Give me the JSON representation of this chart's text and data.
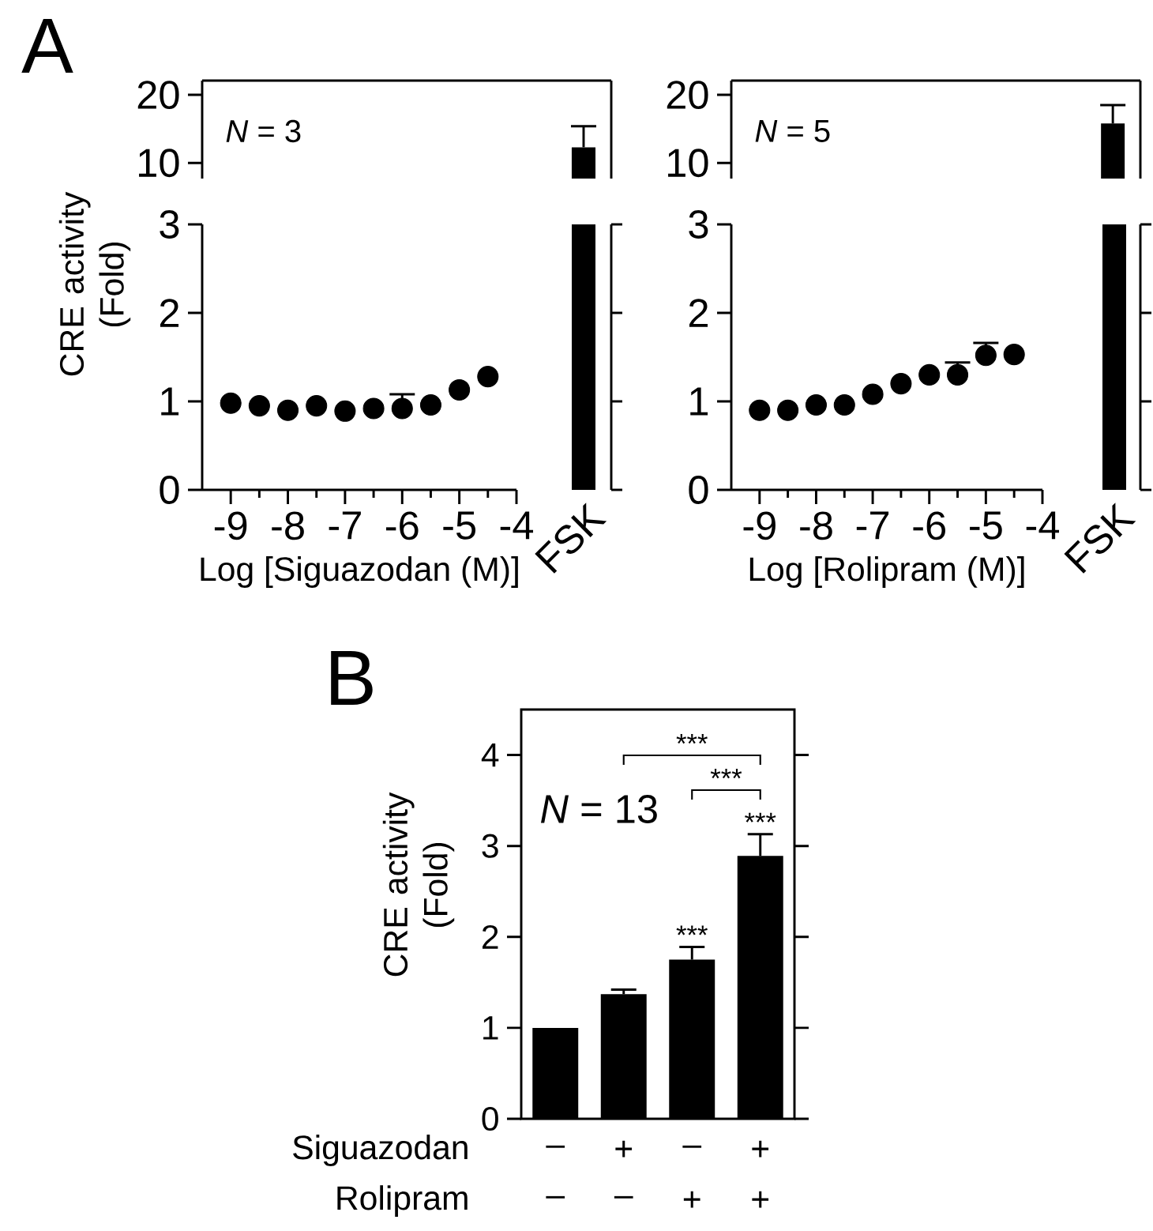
{
  "chart_data": [
    {
      "type": "bar",
      "title": "A",
      "categories": [
        null
      ],
      "values": [
        12.3
      ],
      "errors": [
        [
          12.3,
          15.4
        ]
      ],
      "color": "#000000",
      "ylim": [
        7.7,
        22.1
      ],
      "yticks": [
        10,
        20
      ],
      "annotations": [
        "*N* = 3",
        "FSK"
      ]
    },
    {
      "type": "scatter",
      "xlabel": "Log [Siguazodan (M)]",
      "ylabel": "CRE activity (Fold)",
      "x": [
        -9,
        -8.5,
        -8,
        -7.5,
        -7,
        -6.5,
        -6,
        -5.5,
        -5,
        -4.5
      ],
      "values": [
        0.98,
        0.95,
        0.9,
        0.95,
        0.89,
        0.92,
        0.92,
        0.96,
        1.13,
        1.28
      ],
      "errors": [
        null,
        null,
        null,
        null,
        null,
        null,
        [
          0.92,
          1.08
        ],
        null,
        null,
        null
      ],
      "color": "#000000",
      "marker": "circle",
      "xlim": [
        -9.5,
        -4
      ],
      "xticks": [
        -9,
        -8,
        -7,
        -6,
        -5,
        -4
      ],
      "ylim": [
        0,
        3
      ],
      "yticks": [
        0,
        1,
        2,
        3
      ]
    },
    {
      "type": "bar",
      "categories": [
        null
      ],
      "values": [
        15.8
      ],
      "errors": [
        [
          15.8,
          18.5
        ]
      ],
      "color": "#000000",
      "ylim": [
        7.7,
        22.1
      ],
      "yticks": [
        10,
        20
      ],
      "annotations": [
        "*N* = 5",
        "FSK"
      ]
    },
    {
      "type": "scatter",
      "xlabel": "Log [Rolipram (M)]",
      "x": [
        -9,
        -8.5,
        -8,
        -7.5,
        -7,
        -6.5,
        -6,
        -5.5,
        -5,
        -4.5
      ],
      "values": [
        0.9,
        0.9,
        0.96,
        0.96,
        1.08,
        1.2,
        1.3,
        1.3,
        1.52,
        1.53
      ],
      "errors": [
        null,
        null,
        null,
        null,
        null,
        null,
        null,
        [
          1.3,
          1.44
        ],
        [
          1.52,
          1.66
        ],
        null
      ],
      "color": "#000000",
      "marker": "circle",
      "xlim": [
        -9.5,
        -4
      ],
      "xticks": [
        -9,
        -8,
        -7,
        -6,
        -5,
        -4
      ],
      "ylim": [
        0,
        3
      ],
      "yticks": [
        0,
        1,
        2,
        3
      ]
    },
    {
      "type": "bar",
      "title": "B",
      "ylabel": "CRE activity (Fold)",
      "categories": [
        null,
        null,
        null,
        null
      ],
      "values": [
        1.0,
        1.37,
        1.75,
        2.89
      ],
      "errors": [
        null,
        [
          1.37,
          1.42
        ],
        [
          1.75,
          1.89
        ],
        [
          2.89,
          3.13
        ]
      ],
      "color": "#000000",
      "ylim": [
        0,
        4.5
      ],
      "yticks": [
        0,
        1,
        2,
        3,
        4
      ],
      "annotations": [
        "*N* = 13",
        {
          "text": "***",
          "y": 1.89
        },
        {
          "text": "***",
          "y": 3.13
        },
        "***",
        "***",
        "Siguazodan",
        "–",
        "+",
        "–",
        "+",
        "Rolipram",
        "–",
        "–",
        "+",
        "+"
      ]
    }
  ]
}
